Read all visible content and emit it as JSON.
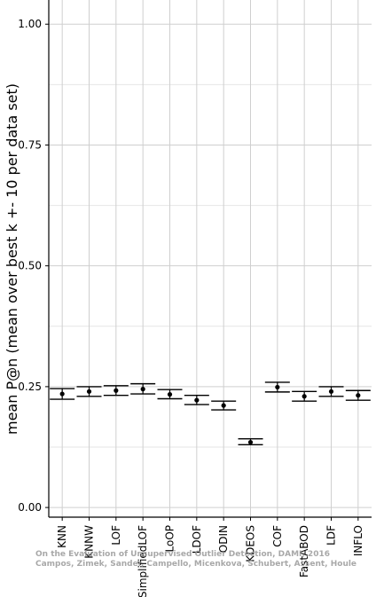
{
  "chart_data": {
    "type": "errorbar",
    "title": "",
    "xlabel": "",
    "ylabel": "mean P@n (mean over best k +- 10 per data set)",
    "ylim": [
      -0.02,
      1.05
    ],
    "yticks": [
      "0.00",
      "0.25",
      "0.50",
      "0.75",
      "1.00"
    ],
    "grid": true,
    "categories": [
      "KNN",
      "KNNW",
      "LOF",
      "SimplifiedLOF",
      "LoOP",
      "LDOF",
      "ODIN",
      "KDEOS",
      "COF",
      "FastABOD",
      "LDF",
      "INFLO"
    ],
    "series": [
      {
        "mean": [
          0.235,
          0.24,
          0.242,
          0.245,
          0.234,
          0.222,
          0.211,
          0.135,
          0.249,
          0.23,
          0.24,
          0.232
        ],
        "lower": [
          0.224,
          0.23,
          0.232,
          0.235,
          0.225,
          0.213,
          0.202,
          0.13,
          0.239,
          0.22,
          0.23,
          0.222
        ],
        "upper": [
          0.246,
          0.25,
          0.252,
          0.256,
          0.244,
          0.232,
          0.22,
          0.142,
          0.259,
          0.24,
          0.25,
          0.242
        ]
      }
    ]
  },
  "watermark": {
    "line1": "On the Evaluation of Unsupervised Outlier Detection, DAMI, 2016",
    "line2": "Campos, Zimek, Sander, Campello, Micenkova, Schubert, Assent, Houle"
  }
}
